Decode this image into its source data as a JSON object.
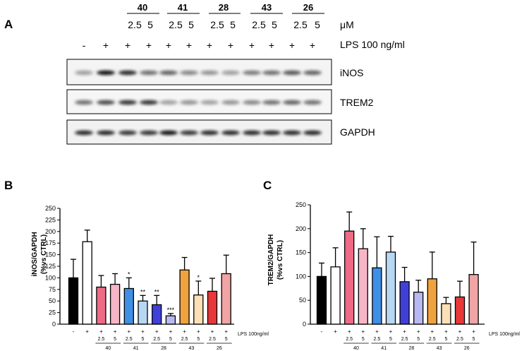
{
  "panels": {
    "a": "A",
    "b": "B",
    "c": "C"
  },
  "blot": {
    "compound_groups": [
      "40",
      "41",
      "28",
      "43",
      "26"
    ],
    "conc_unit": "μM",
    "conc_values": [
      "2.5",
      "5"
    ],
    "lps_label": "LPS 100 ng/ml",
    "lps_signs": [
      "-",
      "+",
      "+",
      "+",
      "+",
      "+",
      "+",
      "+",
      "+",
      "+",
      "+",
      "+"
    ],
    "bands": [
      "iNOS",
      "TREM2",
      "GAPDH"
    ]
  },
  "chart_data": [
    {
      "type": "bar",
      "panel": "B",
      "ylabel_line1": "iNOS/GAPDH",
      "ylabel_line2": "(%vs CTRL)",
      "ylim": [
        0,
        250
      ],
      "yticks": [
        "0",
        "25",
        "50",
        "75",
        "100",
        "125",
        "150",
        "175",
        "200",
        "225",
        "250"
      ],
      "lps_label": "LPS 100ng/ml",
      "values": [
        100,
        178,
        80,
        86,
        77,
        50,
        42,
        18,
        117,
        63,
        71,
        109
      ],
      "errors": [
        40,
        25,
        25,
        23,
        23,
        12,
        20,
        5,
        27,
        30,
        28,
        40
      ],
      "significance": [
        "",
        "",
        "",
        "",
        "*",
        "**",
        "**",
        "***",
        "",
        "*",
        "",
        ""
      ],
      "colors": [
        "#000000",
        "#ffffff",
        "#ee6a86",
        "#f6b6c6",
        "#3f8fe6",
        "#b7d7f2",
        "#4040d8",
        "#b9b9f2",
        "#f0a23e",
        "#fbe0b6",
        "#e8383a",
        "#f1a4a4"
      ],
      "lps_signs": [
        "-",
        "+",
        "+",
        "+",
        "+",
        "+",
        "+",
        "+",
        "+",
        "+",
        "+",
        "+"
      ],
      "conc_labels": [
        "",
        "",
        "2.5",
        "5",
        "2.5",
        "5",
        "2.5",
        "5",
        "2.5",
        "5",
        "2.5",
        "5"
      ],
      "group_labels": [
        "40",
        "41",
        "28",
        "43",
        "26"
      ]
    },
    {
      "type": "bar",
      "panel": "C",
      "ylabel_line1": "TREM2/GAPDH",
      "ylabel_line2": "(%vs CTRL)",
      "ylim": [
        0,
        250
      ],
      "yticks": [
        "0",
        "50",
        "100",
        "150",
        "200",
        "250"
      ],
      "lps_label": "LPS 100ng/ml",
      "values": [
        100,
        120,
        195,
        158,
        118,
        151,
        89,
        67,
        95,
        43,
        57,
        104
      ],
      "errors": [
        28,
        40,
        40,
        42,
        65,
        33,
        30,
        25,
        56,
        13,
        33,
        68
      ],
      "significance": [
        "",
        "",
        "",
        "",
        "",
        "",
        "",
        "",
        "",
        "",
        "",
        ""
      ],
      "colors": [
        "#000000",
        "#ffffff",
        "#ee6a86",
        "#f6b6c6",
        "#3f8fe6",
        "#b7d7f2",
        "#4040d8",
        "#b9b9f2",
        "#f0a23e",
        "#fbe0b6",
        "#e8383a",
        "#f1a4a4"
      ],
      "lps_signs": [
        "-",
        "+",
        "+",
        "+",
        "+",
        "+",
        "+",
        "+",
        "+",
        "+",
        "+",
        "+"
      ],
      "conc_labels": [
        "",
        "",
        "2.5",
        "5",
        "2.5",
        "5",
        "2.5",
        "5",
        "2.5",
        "5",
        "2.5",
        "5"
      ],
      "group_labels": [
        "40",
        "41",
        "28",
        "43",
        "26"
      ]
    }
  ]
}
